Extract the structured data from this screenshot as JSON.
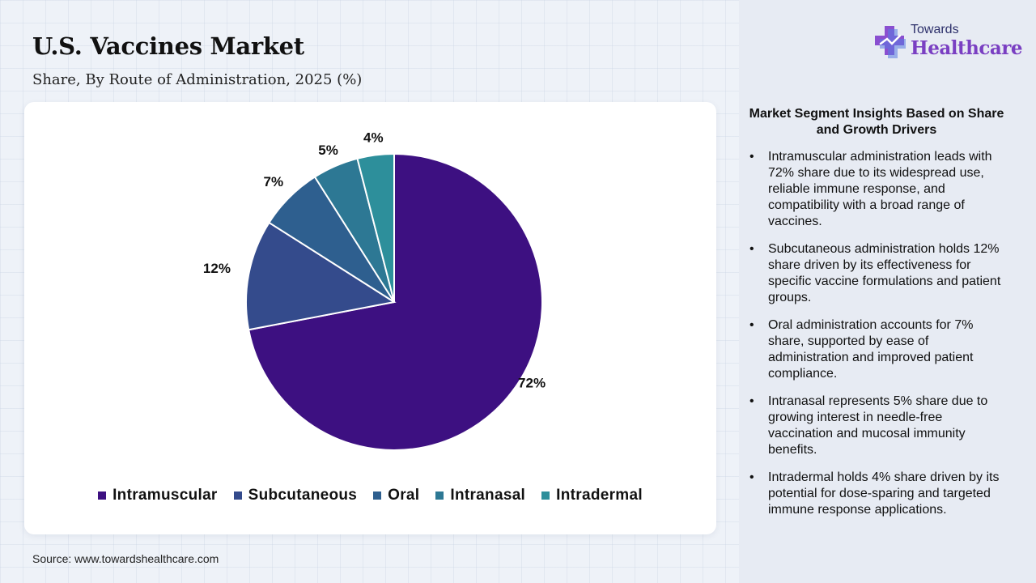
{
  "header": {
    "title": "U.S. Vaccines Market",
    "subtitle": "Share, By Route of Administration, 2025 (%)"
  },
  "chart_data": {
    "type": "pie",
    "title": "U.S. Vaccines Market",
    "subtitle": "Share, By Route of Administration, 2025 (%)",
    "categories": [
      "Intramuscular",
      "Subcutaneous",
      "Oral",
      "Intranasal",
      "Intradermal"
    ],
    "values": [
      72,
      12,
      7,
      5,
      4
    ],
    "data_labels": [
      "72%",
      "12%",
      "7%",
      "5%",
      "4%"
    ],
    "colors": [
      "#3d1081",
      "#344b8c",
      "#2e5f8f",
      "#2d7894",
      "#2d8f9b"
    ],
    "start_angle": "12 o'clock",
    "direction": "clockwise",
    "legend_position": "bottom"
  },
  "source": "Source: www.towardshealthcare.com",
  "logo": {
    "top": "Towards",
    "bottom": "Healthcare",
    "icon": "medical-cross-icon",
    "accent_color": "#7a3fc2"
  },
  "insights": {
    "heading": "Market Segment Insights Based on Share and Growth Drivers",
    "bullet_glyph": "•",
    "items": [
      "Intramuscular administration leads with 72% share due to its widespread use, reliable immune response, and compatibility with a broad range of vaccines.",
      "Subcutaneous administration holds 12% share driven by its effectiveness for specific vaccine formulations and patient groups.",
      "Oral administration accounts for 7% share, supported by ease of administration and improved patient compliance.",
      "Intranasal represents 5% share due to growing interest in needle-free vaccination and mucosal immunity benefits.",
      "Intradermal holds 4% share driven by its potential for dose-sparing and targeted immune response applications."
    ]
  }
}
